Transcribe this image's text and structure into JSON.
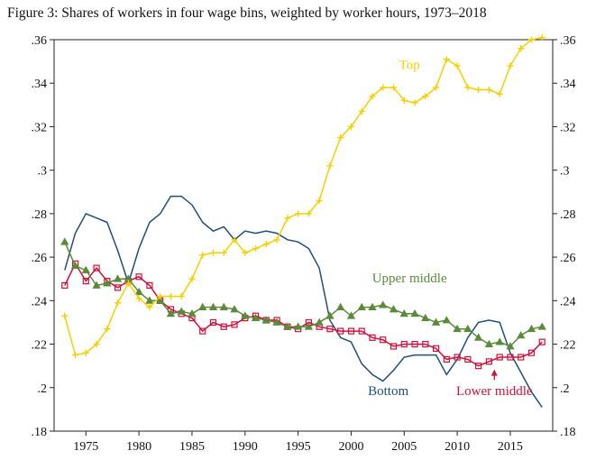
{
  "title": "Figure 3: Shares of workers in four wage bins, weighted by worker hours, 1973–2018",
  "chart_data": {
    "type": "line",
    "title": "Figure 3: Shares of workers in four wage bins, weighted by worker hours, 1973–2018",
    "xlabel": "",
    "ylabel": "",
    "xlim": [
      1972,
      2019
    ],
    "ylim": [
      0.18,
      0.36
    ],
    "x_ticks": [
      1975,
      1980,
      1985,
      1990,
      1995,
      2000,
      2005,
      2010,
      2015
    ],
    "y_ticks": [
      0.18,
      0.2,
      0.22,
      0.24,
      0.26,
      0.28,
      0.3,
      0.32,
      0.34,
      0.36
    ],
    "y_tick_labels": [
      ".18",
      ".2",
      ".22",
      ".24",
      ".26",
      ".28",
      ".3",
      ".32",
      ".34",
      ".36"
    ],
    "right_axis_duplicate": true,
    "grid": false,
    "years": [
      1973,
      1974,
      1975,
      1976,
      1977,
      1978,
      1979,
      1980,
      1981,
      1982,
      1983,
      1984,
      1985,
      1986,
      1987,
      1988,
      1989,
      1990,
      1991,
      1992,
      1993,
      1994,
      1995,
      1996,
      1997,
      1998,
      1999,
      2000,
      2001,
      2002,
      2003,
      2004,
      2005,
      2006,
      2007,
      2008,
      2009,
      2010,
      2011,
      2012,
      2013,
      2014,
      2015,
      2016,
      2017,
      2018
    ],
    "series": [
      {
        "name": "Bottom",
        "color": "#1f4e79",
        "marker": "none",
        "values": [
          0.254,
          0.271,
          0.28,
          0.278,
          0.276,
          0.263,
          0.248,
          0.264,
          0.276,
          0.28,
          0.288,
          0.288,
          0.284,
          0.276,
          0.272,
          0.274,
          0.268,
          0.272,
          0.271,
          0.272,
          0.271,
          0.268,
          0.267,
          0.264,
          0.255,
          0.231,
          0.223,
          0.221,
          0.211,
          0.206,
          0.203,
          0.208,
          0.214,
          0.215,
          0.215,
          0.215,
          0.206,
          0.213,
          0.223,
          0.23,
          0.231,
          0.23,
          0.216,
          0.207,
          0.198,
          0.191
        ]
      },
      {
        "name": "Lower middle",
        "color": "#d0103a",
        "marker": "square",
        "values": [
          0.247,
          0.257,
          0.249,
          0.255,
          0.249,
          0.246,
          0.249,
          0.251,
          0.247,
          0.24,
          0.236,
          0.234,
          0.232,
          0.226,
          0.23,
          0.228,
          0.229,
          0.232,
          0.233,
          0.231,
          0.231,
          0.228,
          0.227,
          0.23,
          0.228,
          0.227,
          0.226,
          0.226,
          0.226,
          0.223,
          0.222,
          0.219,
          0.22,
          0.22,
          0.22,
          0.218,
          0.213,
          0.214,
          0.213,
          0.21,
          0.212,
          0.214,
          0.214,
          0.214,
          0.216,
          0.221
        ]
      },
      {
        "name": "Upper middle",
        "color": "#5a8a3a",
        "marker": "triangle",
        "values": [
          0.267,
          0.256,
          0.254,
          0.247,
          0.248,
          0.25,
          0.25,
          0.244,
          0.24,
          0.24,
          0.234,
          0.235,
          0.234,
          0.237,
          0.237,
          0.237,
          0.236,
          0.233,
          0.232,
          0.231,
          0.23,
          0.228,
          0.228,
          0.228,
          0.23,
          0.233,
          0.237,
          0.233,
          0.237,
          0.237,
          0.238,
          0.236,
          0.234,
          0.234,
          0.232,
          0.23,
          0.231,
          0.227,
          0.227,
          0.223,
          0.22,
          0.221,
          0.219,
          0.224,
          0.227,
          0.228
        ]
      },
      {
        "name": "Top",
        "color": "#f5d000",
        "marker": "plus",
        "values": [
          0.233,
          0.215,
          0.216,
          0.22,
          0.227,
          0.239,
          0.248,
          0.241,
          0.237,
          0.242,
          0.242,
          0.242,
          0.25,
          0.261,
          0.262,
          0.262,
          0.268,
          0.262,
          0.264,
          0.266,
          0.268,
          0.278,
          0.28,
          0.28,
          0.286,
          0.302,
          0.315,
          0.32,
          0.327,
          0.334,
          0.338,
          0.338,
          0.332,
          0.331,
          0.334,
          0.338,
          0.351,
          0.348,
          0.338,
          0.337,
          0.337,
          0.335,
          0.348,
          0.356,
          0.36,
          0.361
        ]
      }
    ],
    "annotations": [
      {
        "series": "Top",
        "text": "Top",
        "x": 2005.5,
        "y": 0.3465
      },
      {
        "series": "Upper middle",
        "text": "Upper middle",
        "x": 2005.5,
        "y": 0.2485
      },
      {
        "series": "Bottom",
        "text": "Bottom",
        "x": 2003.5,
        "y": 0.1965
      },
      {
        "series": "Lower middle",
        "text": "Lower middle",
        "x": 2013.5,
        "y": 0.1965
      }
    ]
  }
}
